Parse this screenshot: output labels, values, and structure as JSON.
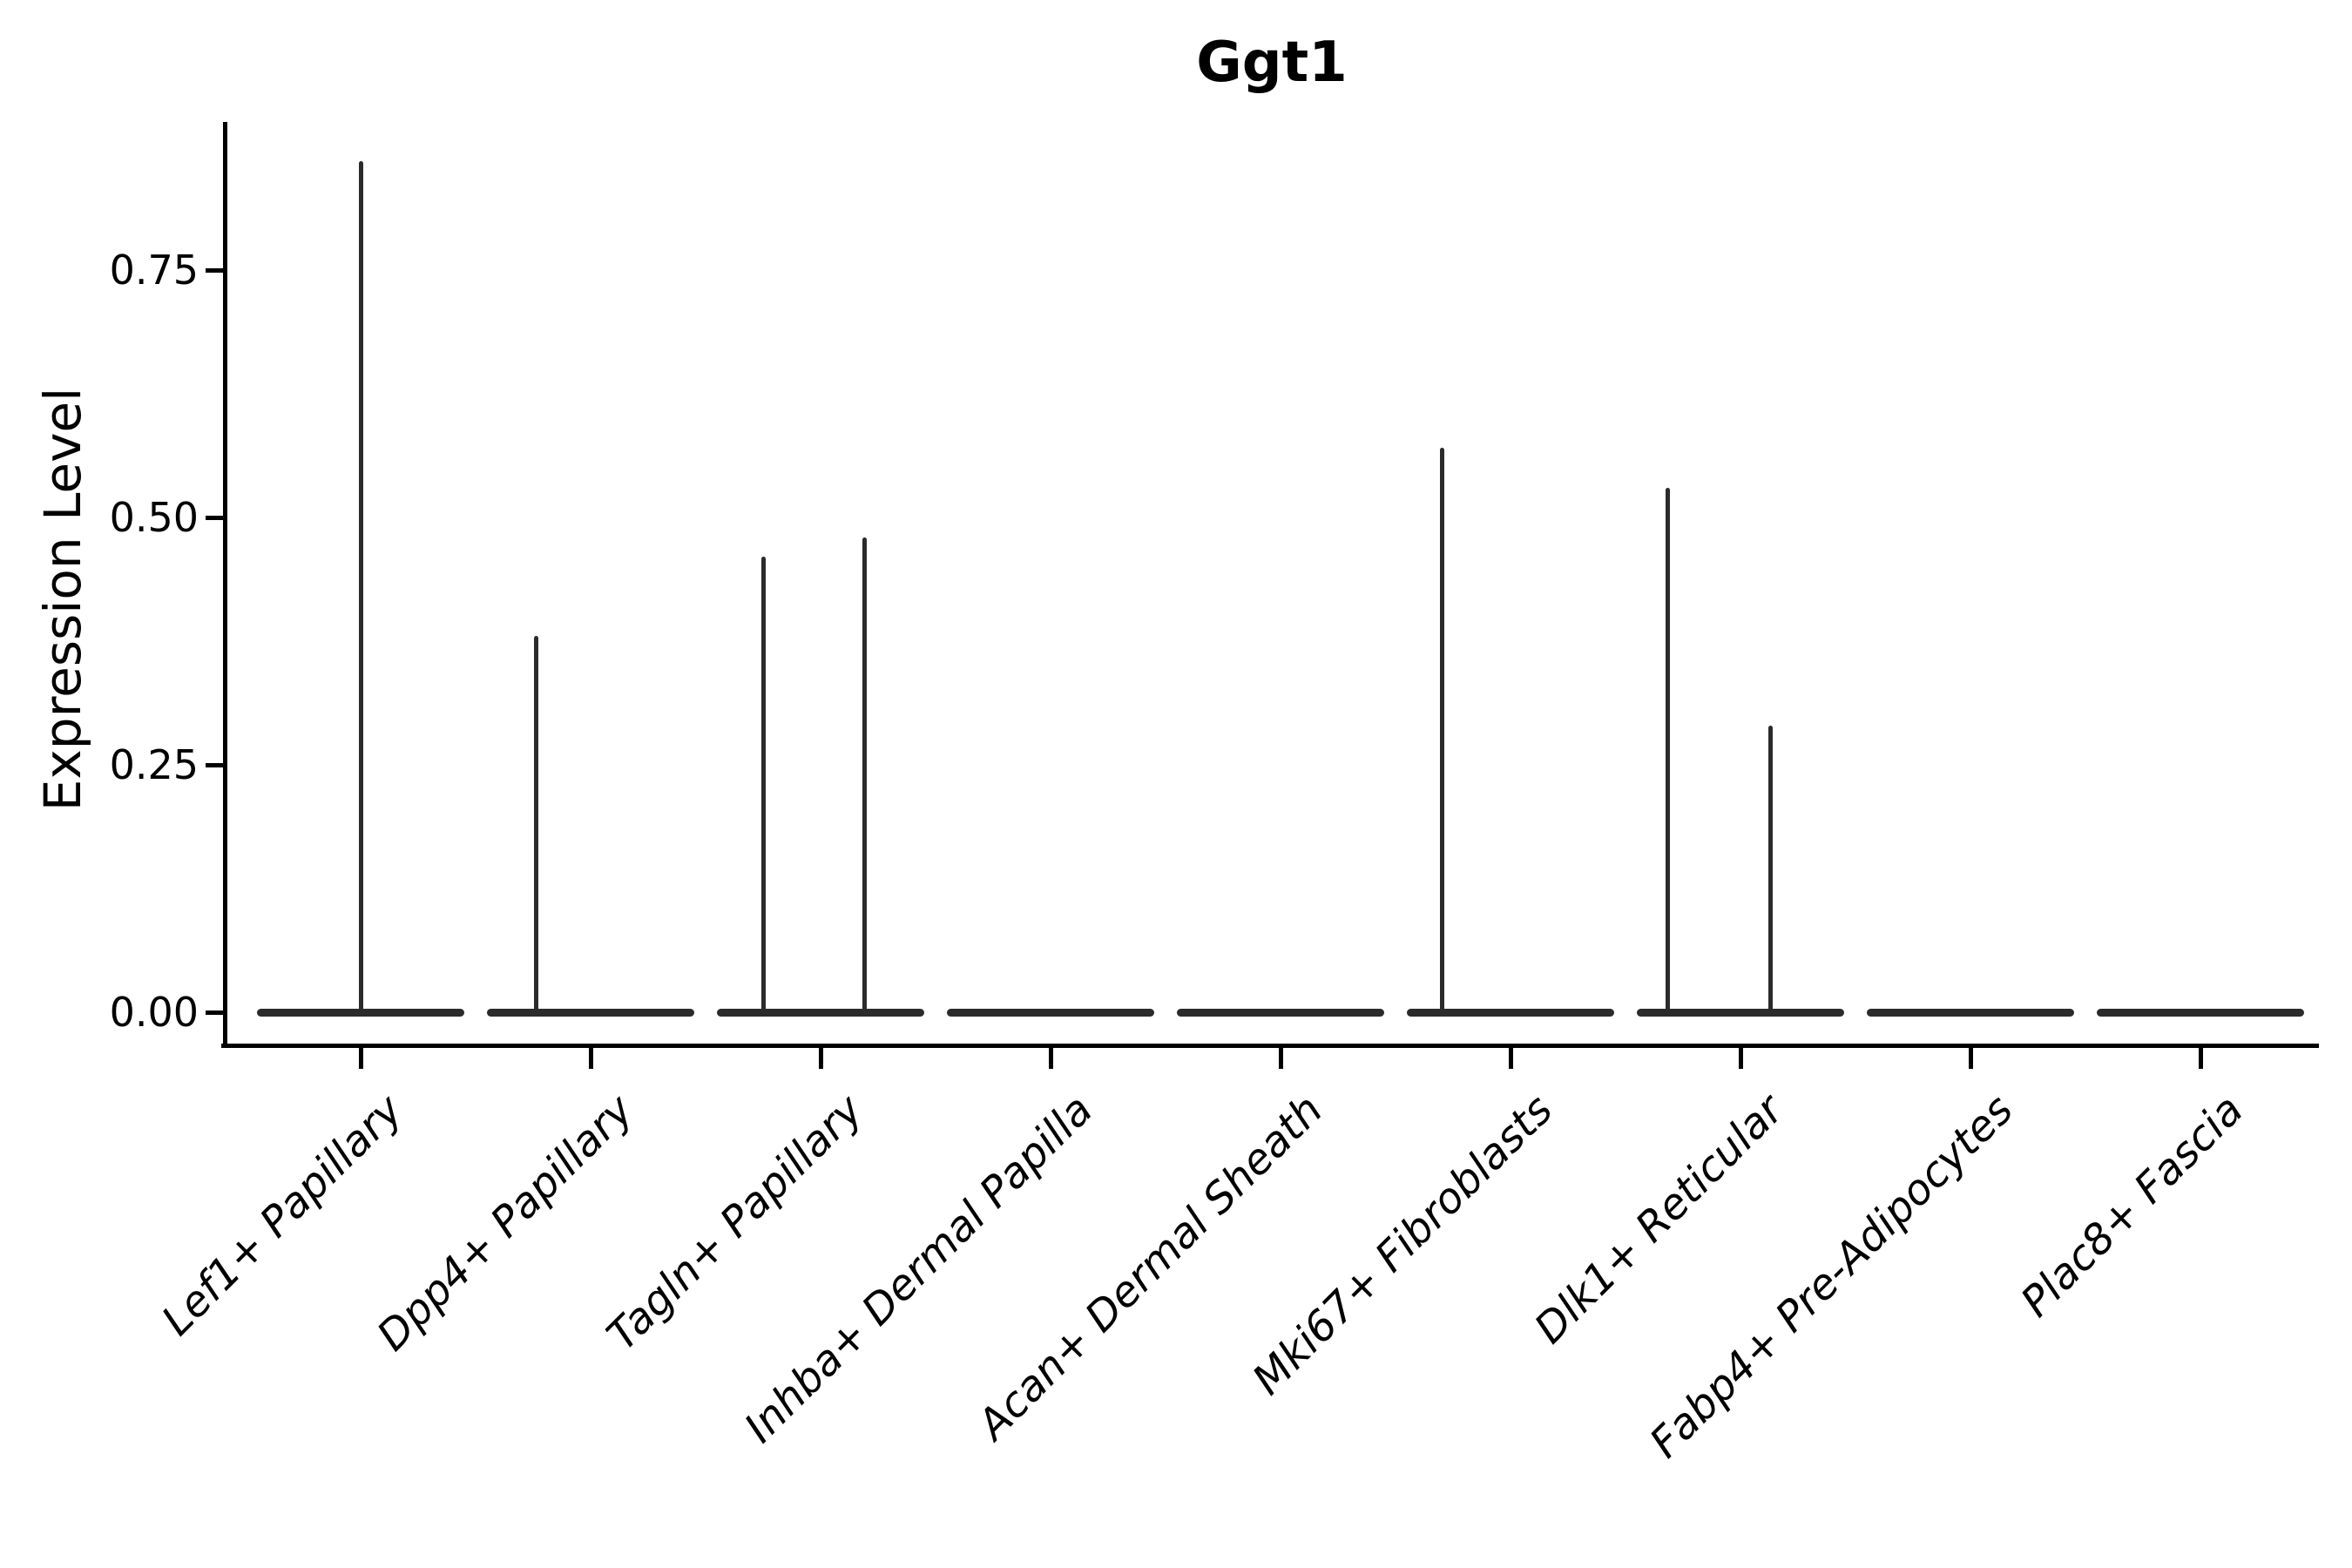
{
  "figure": {
    "title": "Ggt1",
    "ylabel": "Expression Level"
  },
  "colors": {
    "ink": "#000000",
    "violin": "#2b2b2b",
    "background": "#ffffff"
  },
  "chart_data": {
    "type": "violin",
    "title": "Ggt1",
    "xlabel": "",
    "ylabel": "Expression Level",
    "ylim": [
      0,
      0.9
    ],
    "grid": false,
    "legend": false,
    "y_axis": {
      "ticks": [
        {
          "value": 0.0,
          "label": "0.00"
        },
        {
          "value": 0.25,
          "label": "0.25"
        },
        {
          "value": 0.5,
          "label": "0.50"
        },
        {
          "value": 0.75,
          "label": "0.75"
        }
      ]
    },
    "categories": [
      "Lef1+ Papillary",
      "Dpp4+ Papillary",
      "Tagln+ Papillary",
      "Inhba+ Dermal Papilla",
      "Acan+ Dermal Sheath",
      "Mki67+ Fibroblasts",
      "Dlk1+ Reticular",
      "Fabp4+ Pre-Adipocytes",
      "Plac8+ Fascia"
    ],
    "violins": [
      {
        "category": "Lef1+ Papillary",
        "base_at_zero": true,
        "base_halfwidth_frac": 0.45,
        "spikes": [
          {
            "value": 0.86,
            "x_offset_frac": 0.0
          }
        ]
      },
      {
        "category": "Dpp4+ Papillary",
        "base_at_zero": true,
        "base_halfwidth_frac": 0.45,
        "spikes": [
          {
            "value": 0.38,
            "x_offset_frac": -0.235
          }
        ]
      },
      {
        "category": "Tagln+ Papillary",
        "base_at_zero": true,
        "base_halfwidth_frac": 0.45,
        "spikes": [
          {
            "value": 0.46,
            "x_offset_frac": -0.25
          },
          {
            "value": 0.48,
            "x_offset_frac": 0.193
          }
        ]
      },
      {
        "category": "Inhba+ Dermal Papilla",
        "base_at_zero": true,
        "base_halfwidth_frac": 0.45,
        "spikes": []
      },
      {
        "category": "Acan+ Dermal Sheath",
        "base_at_zero": true,
        "base_halfwidth_frac": 0.45,
        "spikes": []
      },
      {
        "category": "Mki67+ Fibroblasts",
        "base_at_zero": true,
        "base_halfwidth_frac": 0.45,
        "spikes": [
          {
            "value": 0.57,
            "x_offset_frac": -0.299
          }
        ]
      },
      {
        "category": "Dlk1+ Reticular",
        "base_at_zero": true,
        "base_halfwidth_frac": 0.45,
        "spikes": [
          {
            "value": 0.53,
            "x_offset_frac": -0.318
          },
          {
            "value": 0.29,
            "x_offset_frac": 0.129
          }
        ]
      },
      {
        "category": "Fabp4+ Pre-Adipocytes",
        "base_at_zero": true,
        "base_halfwidth_frac": 0.45,
        "spikes": []
      },
      {
        "category": "Plac8+ Fascia",
        "base_at_zero": true,
        "base_halfwidth_frac": 0.45,
        "spikes": []
      }
    ]
  }
}
